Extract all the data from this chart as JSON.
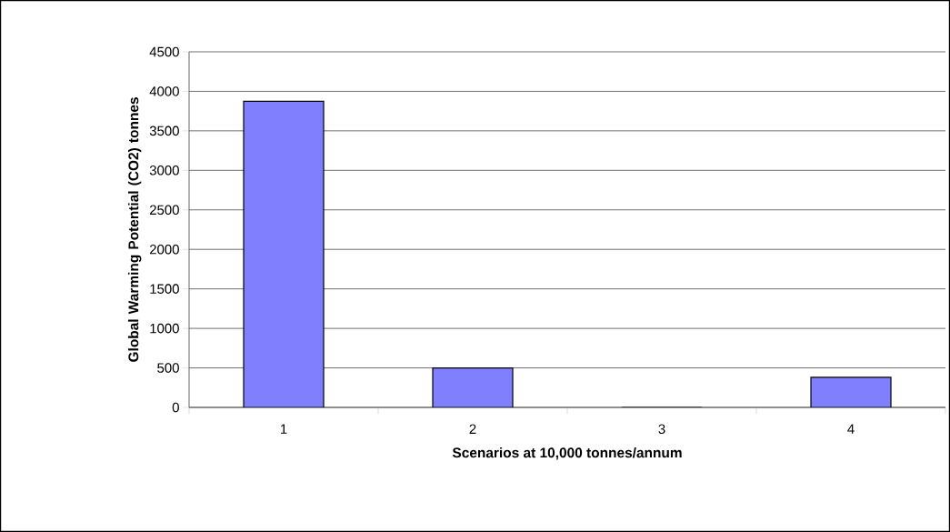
{
  "chart_data": {
    "type": "bar",
    "xlabel": "Scenarios at 10,000 tonnes/annum",
    "ylabel": "Global Warming Potential (CO2) tonnes",
    "categories": [
      "1",
      "2",
      "3",
      "4"
    ],
    "values": [
      3875,
      500,
      0,
      380
    ],
    "color": "#8080ff",
    "ylim": [
      0,
      4500
    ],
    "yticks": [
      0,
      500,
      1000,
      1500,
      2000,
      2500,
      3000,
      3500,
      4000,
      4500
    ],
    "grid": "y"
  }
}
